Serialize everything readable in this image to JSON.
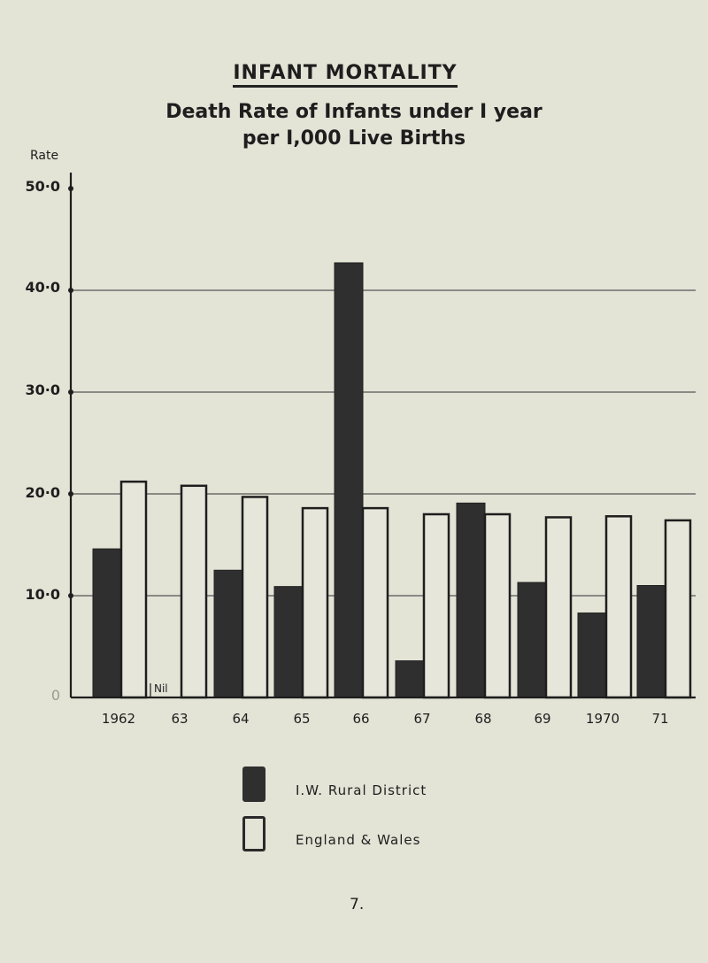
{
  "header": {
    "title": "INFANT MORTALITY",
    "subtitle_line1": "Death Rate of Infants under I year",
    "subtitle_line2": "per I,000 Live Births"
  },
  "axis": {
    "ylabel": "Rate",
    "yticks": [
      "50·0",
      "40·0",
      "30·0",
      "20·0",
      "10·0",
      "0"
    ],
    "xticks": [
      "1962",
      "63",
      "64",
      "65",
      "66",
      "67",
      "68",
      "69",
      "1970",
      "71"
    ],
    "nil_label": "Nil"
  },
  "legend": {
    "iow": "I.W. Rural District",
    "ew": "England & Wales"
  },
  "footer": {
    "page_number": "7."
  },
  "colors": {
    "background": "#e3e3d6",
    "ink": "#1e1e1e",
    "iow_fill": "#2f2f2f",
    "ew_fill": "#e6e6da"
  },
  "chart_data": {
    "type": "bar",
    "title": "INFANT MORTALITY — Death Rate of Infants under 1 year per 1,000 Live Births",
    "xlabel": "",
    "ylabel": "Rate",
    "ylim": [
      0,
      50
    ],
    "yticks": [
      0,
      10,
      20,
      30,
      40,
      50
    ],
    "grid": "horizontal lines at 10, 20, 30, 40",
    "legend_position": "bottom center",
    "categories": [
      "1962",
      "1963",
      "1964",
      "1965",
      "1966",
      "1967",
      "1968",
      "1969",
      "1970",
      "1971"
    ],
    "series": [
      {
        "name": "I.W. Rural District",
        "fill": "dark",
        "values": [
          14.6,
          0,
          12.5,
          10.9,
          42.7,
          3.6,
          19.1,
          11.3,
          8.3,
          11.0
        ]
      },
      {
        "name": "England & Wales",
        "fill": "white",
        "values": [
          21.2,
          20.8,
          19.7,
          18.6,
          18.6,
          18.0,
          18.0,
          17.7,
          17.8,
          17.4
        ]
      }
    ],
    "annotations": [
      "Nil (I.W. Rural District, 1963)"
    ]
  }
}
